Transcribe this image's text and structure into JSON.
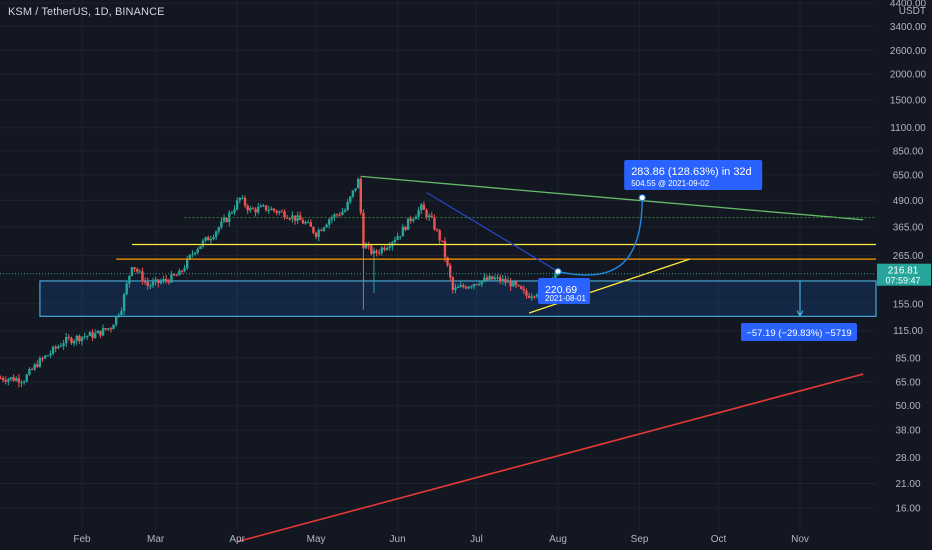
{
  "header": {
    "symbol_title": "KSM / TetherUS, 1D, BINANCE",
    "currency": "USDT"
  },
  "colors": {
    "background": "#131722",
    "up": "#26a69a",
    "down": "#ef5350",
    "axis_text": "#b2b5be",
    "grid": "#1e222d",
    "label_blue": "#2962ff",
    "measure_blue": "#1e88e5",
    "zone_fill": "#1565c0",
    "yellow": "#ffeb3b",
    "orange": "#ff9800",
    "red": "#e53935",
    "green": "#66bb6a",
    "navy": "#2743c4"
  },
  "chart_data": {
    "type": "candlestick",
    "scale": "log",
    "x_ticks": [
      "Feb",
      "Mar",
      "Apr",
      "May",
      "Jun",
      "Jul",
      "Aug",
      "Sep",
      "Oct",
      "Nov"
    ],
    "x_tick_dates": [
      "2021-02-01",
      "2021-03-01",
      "2021-04-01",
      "2021-05-01",
      "2021-06-01",
      "2021-07-01",
      "2021-08-01",
      "2021-09-01",
      "2021-10-01",
      "2021-11-01"
    ],
    "y_ticks": [
      "4400.00",
      "3400.00",
      "2600.00",
      "2000.00",
      "1500.00",
      "1100.00",
      "850.00",
      "650.00",
      "490.00",
      "365.00",
      "265.00",
      "155.00",
      "115.00",
      "85.00",
      "65.00",
      "50.00",
      "38.00",
      "28.00",
      "21.00",
      "16.00"
    ],
    "y_tick_values": [
      4400,
      3400,
      2600,
      2000,
      1500,
      1100,
      850,
      650,
      490,
      365,
      265,
      155,
      115,
      85,
      65,
      50,
      38,
      28,
      21,
      16
    ],
    "current_price": {
      "value": "216.81",
      "countdown": "07:59:47",
      "price": 216.81
    },
    "price_path": [
      {
        "date": "2021-01-01",
        "close": 68
      },
      {
        "date": "2021-01-10",
        "close": 67
      },
      {
        "date": "2021-01-15",
        "close": 80
      },
      {
        "date": "2021-01-20",
        "close": 90
      },
      {
        "date": "2021-01-25",
        "close": 102
      },
      {
        "date": "2021-02-01",
        "close": 108
      },
      {
        "date": "2021-02-06",
        "close": 110
      },
      {
        "date": "2021-02-12",
        "close": 120
      },
      {
        "date": "2021-02-16",
        "close": 150
      },
      {
        "date": "2021-02-20",
        "close": 242
      },
      {
        "date": "2021-02-26",
        "close": 190
      },
      {
        "date": "2021-03-04",
        "close": 200
      },
      {
        "date": "2021-03-10",
        "close": 215
      },
      {
        "date": "2021-03-16",
        "close": 285
      },
      {
        "date": "2021-03-22",
        "close": 330
      },
      {
        "date": "2021-03-28",
        "close": 400
      },
      {
        "date": "2021-04-02",
        "close": 500
      },
      {
        "date": "2021-04-06",
        "close": 440
      },
      {
        "date": "2021-04-12",
        "close": 450
      },
      {
        "date": "2021-04-20",
        "close": 420
      },
      {
        "date": "2021-04-27",
        "close": 380
      },
      {
        "date": "2021-05-01",
        "close": 340
      },
      {
        "date": "2021-05-06",
        "close": 400
      },
      {
        "date": "2021-05-12",
        "close": 440
      },
      {
        "date": "2021-05-17",
        "close": 610
      },
      {
        "date": "2021-05-19",
        "close": 300
      },
      {
        "date": "2021-05-23",
        "close": 270
      },
      {
        "date": "2021-05-28",
        "close": 300
      },
      {
        "date": "2021-06-02",
        "close": 340
      },
      {
        "date": "2021-06-06",
        "close": 400
      },
      {
        "date": "2021-06-10",
        "close": 450
      },
      {
        "date": "2021-06-14",
        "close": 390
      },
      {
        "date": "2021-06-18",
        "close": 300
      },
      {
        "date": "2021-06-22",
        "close": 180
      },
      {
        "date": "2021-06-27",
        "close": 190
      },
      {
        "date": "2021-07-02",
        "close": 200
      },
      {
        "date": "2021-07-08",
        "close": 205
      },
      {
        "date": "2021-07-14",
        "close": 195
      },
      {
        "date": "2021-07-20",
        "close": 170
      },
      {
        "date": "2021-07-24",
        "close": 178
      },
      {
        "date": "2021-07-28",
        "close": 200
      },
      {
        "date": "2021-08-01",
        "close": 217
      }
    ],
    "drawings": {
      "red_trendline": {
        "from": {
          "date": "2021-04-01",
          "price": 11
        },
        "to": {
          "date": "2021-11-25",
          "price": 71
        }
      },
      "green_trendline": {
        "from": {
          "date": "2021-05-18",
          "price": 640
        },
        "to": {
          "date": "2021-11-25",
          "price": 395
        }
      },
      "yellow_horizontal": {
        "from_date": "2021-02-20",
        "price": 300
      },
      "orange_horizontal": {
        "from_date": "2021-02-14",
        "price": 255
      },
      "yellow_trendline": {
        "from": {
          "date": "2021-07-21",
          "price": 140
        },
        "to": {
          "date": "2021-09-20",
          "price": 255
        }
      },
      "green_dotted_level": {
        "from_date": "2021-03-12",
        "price": 405
      },
      "navy_line": {
        "from": {
          "date": "2021-06-12",
          "price": 535
        },
        "to": {
          "date": "2021-08-01",
          "price": 222
        }
      },
      "curved_projection": {
        "from": {
          "date": "2021-08-01",
          "price": 222
        },
        "to": {
          "date": "2021-09-02",
          "price": 504.55
        }
      },
      "range_zone": {
        "from_date": "2021-01-16",
        "top": 200,
        "bottom": 135
      },
      "measure_arrow": {
        "date": "2021-11-01",
        "from": 200,
        "to": 136
      }
    },
    "labels": {
      "projection_main": "283.86 (128.63%) in 32d",
      "projection_sub": "504.55 @ 2021-09-02",
      "pivot_price": "220.69",
      "pivot_date": "2021-08-01",
      "measure": "−57.19 (−29.83%) −5719"
    }
  }
}
